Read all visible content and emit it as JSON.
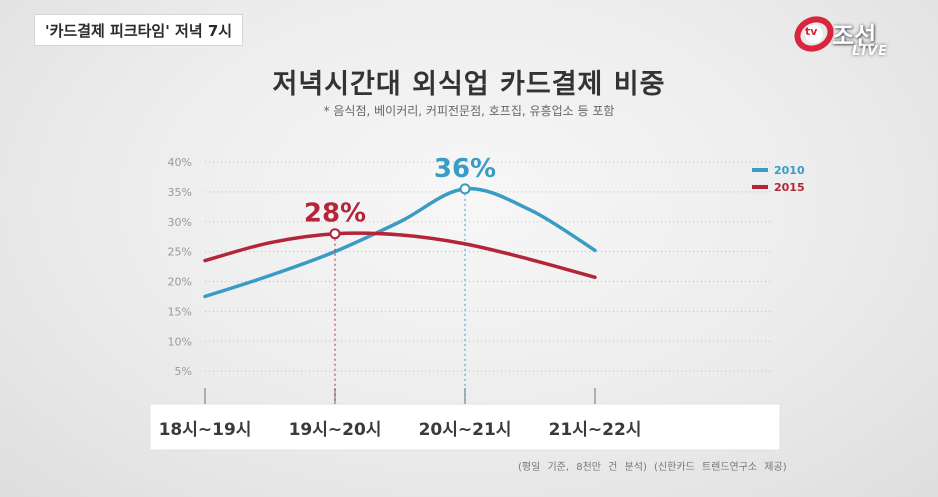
{
  "broadcast": {
    "caption": "'카드결제 피크타임' 저녁 7시",
    "logo_name": "조선",
    "logo_live": "LIVE",
    "logo_mark": "tv"
  },
  "source_note": "(평일 기준, 8천만 건 분석)   (신한카드 트렌드연구소 제공)",
  "colors": {
    "2010": "#3a9cc4",
    "2015": "#b3263a"
  },
  "chart_data": {
    "type": "line",
    "title": "저녁시간대 외식업 카드결제 비중",
    "subtitle": "* 음식점, 베이커리, 커피전문점, 호프집, 유흥업소 등 포함",
    "categories": [
      "18시~19시",
      "19시~20시",
      "20시~21시",
      "21시~22시"
    ],
    "x": [
      18.5,
      19.5,
      20.5,
      21.5
    ],
    "xlim": [
      18.0,
      22.0
    ],
    "series": [
      {
        "name": "2010",
        "points": [
          [
            18.0,
            17.5
          ],
          [
            18.5,
            21.0
          ],
          [
            19.0,
            25.0
          ],
          [
            19.5,
            30.0
          ],
          [
            20.0,
            35.5
          ],
          [
            20.5,
            32.0
          ],
          [
            21.0,
            25.2
          ]
        ],
        "peak": {
          "x": 20.0,
          "y": 36,
          "label": "36%"
        }
      },
      {
        "name": "2015",
        "points": [
          [
            18.0,
            23.5
          ],
          [
            18.5,
            26.5
          ],
          [
            19.0,
            28.0
          ],
          [
            19.5,
            27.8
          ],
          [
            20.0,
            26.3
          ],
          [
            20.5,
            23.7
          ],
          [
            21.0,
            20.7
          ]
        ],
        "peak": {
          "x": 19.0,
          "y": 28,
          "label": "28%"
        }
      }
    ],
    "yticks": [
      "40%",
      "35%",
      "30%",
      "25%",
      "20%",
      "15%",
      "10%",
      "5%"
    ],
    "ytick_values": [
      40,
      35,
      30,
      25,
      20,
      15,
      10,
      5
    ],
    "ylim": [
      0,
      40
    ],
    "grid": true,
    "legend": {
      "position": "top-right",
      "entries": [
        "2010",
        "2015"
      ]
    }
  }
}
